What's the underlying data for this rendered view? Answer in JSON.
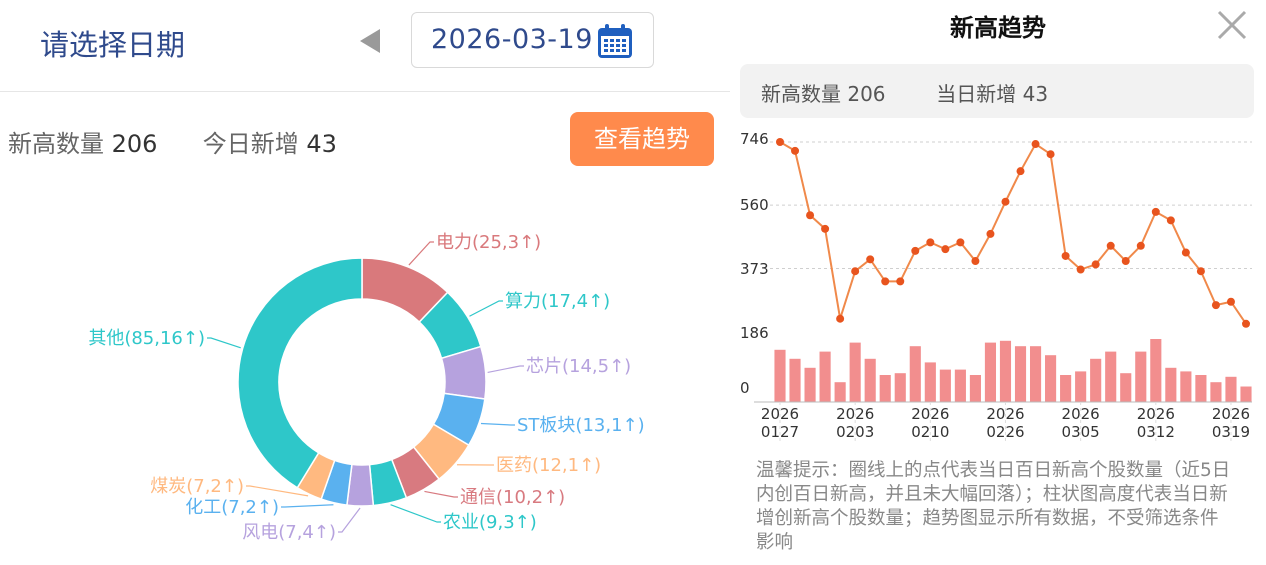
{
  "left_panel": {
    "date_title": "请选择日期",
    "date_value": "2026-03-19",
    "stats": {
      "new_high_label": "新高数量",
      "new_high_value": "206",
      "today_new_label": "今日新增",
      "today_new_value": "43"
    },
    "trend_button": "查看趋势",
    "donut": {
      "segments": [
        {
          "label": "电力(25,3↑)",
          "value": 25,
          "color": "#d9797c"
        },
        {
          "label": "算力(17,4↑)",
          "value": 17,
          "color": "#2ec7c9"
        },
        {
          "label": "芯片(14,5↑)",
          "value": 14,
          "color": "#b6a2de"
        },
        {
          "label": "ST板块(13,1↑)",
          "value": 13,
          "color": "#5ab1ef"
        },
        {
          "label": "医药(12,1↑)",
          "value": 12,
          "color": "#ffb980"
        },
        {
          "label": "通信(10,2↑)",
          "value": 10,
          "color": "#d87a80"
        },
        {
          "label": "农业(9,3↑)",
          "value": 9,
          "color": "#2ec7c9"
        },
        {
          "label": "风电(7,4↑)",
          "value": 7,
          "color": "#b6a2de"
        },
        {
          "label": "化工(7,2↑)",
          "value": 7,
          "color": "#5ab1ef"
        },
        {
          "label": "煤炭(7,2↑)",
          "value": 7,
          "color": "#ffb980"
        },
        {
          "label": "其他(85,16↑)",
          "value": 85,
          "color": "#2ec7c9"
        }
      ]
    }
  },
  "right_panel": {
    "title": "新高趋势",
    "summary": {
      "new_high_label": "新高数量",
      "new_high_value": "206",
      "today_new_label": "当日新增",
      "today_new_value": "43"
    },
    "tip": "温馨提示：圈线上的点代表当日百日新高个股数量（近5日内创百日新高，并且未大幅回落）；柱状图高度代表当日新增创新高个股数量；趋势图显示所有数据，不受筛选条件影响",
    "colors": {
      "line": "#f0894a",
      "point": "#e8541e",
      "bar": "#f28e8e"
    }
  },
  "chart_data": {
    "type": "line",
    "y_ticks": [
      "746",
      "560",
      "373",
      "186",
      "0"
    ],
    "x_ticks": [
      {
        "year": "2026",
        "date": "0127"
      },
      {
        "year": "2026",
        "date": "0203"
      },
      {
        "year": "2026",
        "date": "0210"
      },
      {
        "year": "2026",
        "date": "0226"
      },
      {
        "year": "2026",
        "date": "0305"
      },
      {
        "year": "2026",
        "date": "0312"
      },
      {
        "year": "2026",
        "date": "0319"
      }
    ],
    "x_tick_index": [
      0,
      5,
      10,
      15,
      20,
      25,
      30
    ],
    "ylim": [
      0,
      746
    ],
    "series": [
      {
        "type": "line",
        "values": [
          746,
          720,
          530,
          490,
          225,
          365,
          400,
          335,
          335,
          425,
          450,
          430,
          450,
          395,
          475,
          570,
          660,
          740,
          710,
          410,
          370,
          385,
          440,
          395,
          440,
          540,
          515,
          420,
          365,
          265,
          275,
          210
        ]
      },
      {
        "type": "bar",
        "values": [
          145,
          120,
          95,
          140,
          55,
          165,
          120,
          75,
          80,
          155,
          110,
          90,
          90,
          75,
          165,
          170,
          155,
          155,
          130,
          75,
          85,
          120,
          140,
          80,
          140,
          175,
          95,
          85,
          75,
          55,
          70,
          43
        ]
      }
    ]
  }
}
